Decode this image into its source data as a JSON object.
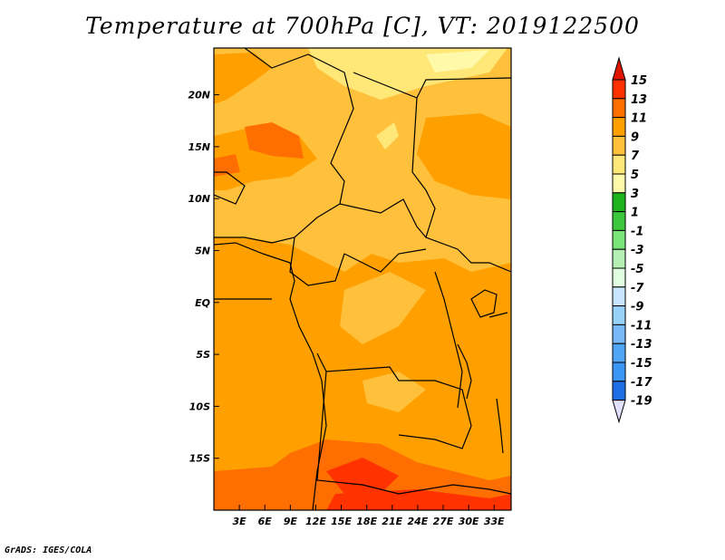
{
  "title": "Temperature at 700hPa [C], VT: 2019122500",
  "credit": "GrADS: IGES/COLA",
  "map": {
    "lon_range": [
      0,
      35
    ],
    "lat_range": [
      -20,
      24.5
    ],
    "lat_ticks": [
      {
        "lat": 20,
        "label": "20N"
      },
      {
        "lat": 15,
        "label": "15N"
      },
      {
        "lat": 10,
        "label": "10N"
      },
      {
        "lat": 5,
        "label": "5N"
      },
      {
        "lat": 0,
        "label": "EQ"
      },
      {
        "lat": -5,
        "label": "5S"
      },
      {
        "lat": -10,
        "label": "10S"
      },
      {
        "lat": -15,
        "label": "15S"
      }
    ],
    "lon_ticks": [
      {
        "lon": 3,
        "label": "3E"
      },
      {
        "lon": 6,
        "label": "6E"
      },
      {
        "lon": 9,
        "label": "9E"
      },
      {
        "lon": 12,
        "label": "12E"
      },
      {
        "lon": 15,
        "label": "15E"
      },
      {
        "lon": 18,
        "label": "18E"
      },
      {
        "lon": 21,
        "label": "21E"
      },
      {
        "lon": 24,
        "label": "24E"
      },
      {
        "lon": 27,
        "label": "27E"
      },
      {
        "lon": 30,
        "label": "30E"
      },
      {
        "lon": 33,
        "label": "33E"
      }
    ]
  },
  "colorbar": {
    "levels": [
      "15",
      "13",
      "11",
      "9",
      "7",
      "5",
      "3",
      "1",
      "-1",
      "-3",
      "-5",
      "-7",
      "-9",
      "-11",
      "-13",
      "-15",
      "-17",
      "-19"
    ],
    "colors": [
      "#e11400",
      "#ff3200",
      "#ff6e00",
      "#ffa000",
      "#ffc03c",
      "#ffe878",
      "#fffaaa",
      "#1eb41e",
      "#3cc83c",
      "#78e678",
      "#b4f0b4",
      "#e1ffe1",
      "#c8e6ff",
      "#96d2fa",
      "#78b9fa",
      "#50a5f5",
      "#3c96f5",
      "#1e6ee6",
      "#1450d2",
      "#0a28a0"
    ],
    "max_arrow_color": "#e11400",
    "min_arrow_color": "#e1e1ff"
  }
}
